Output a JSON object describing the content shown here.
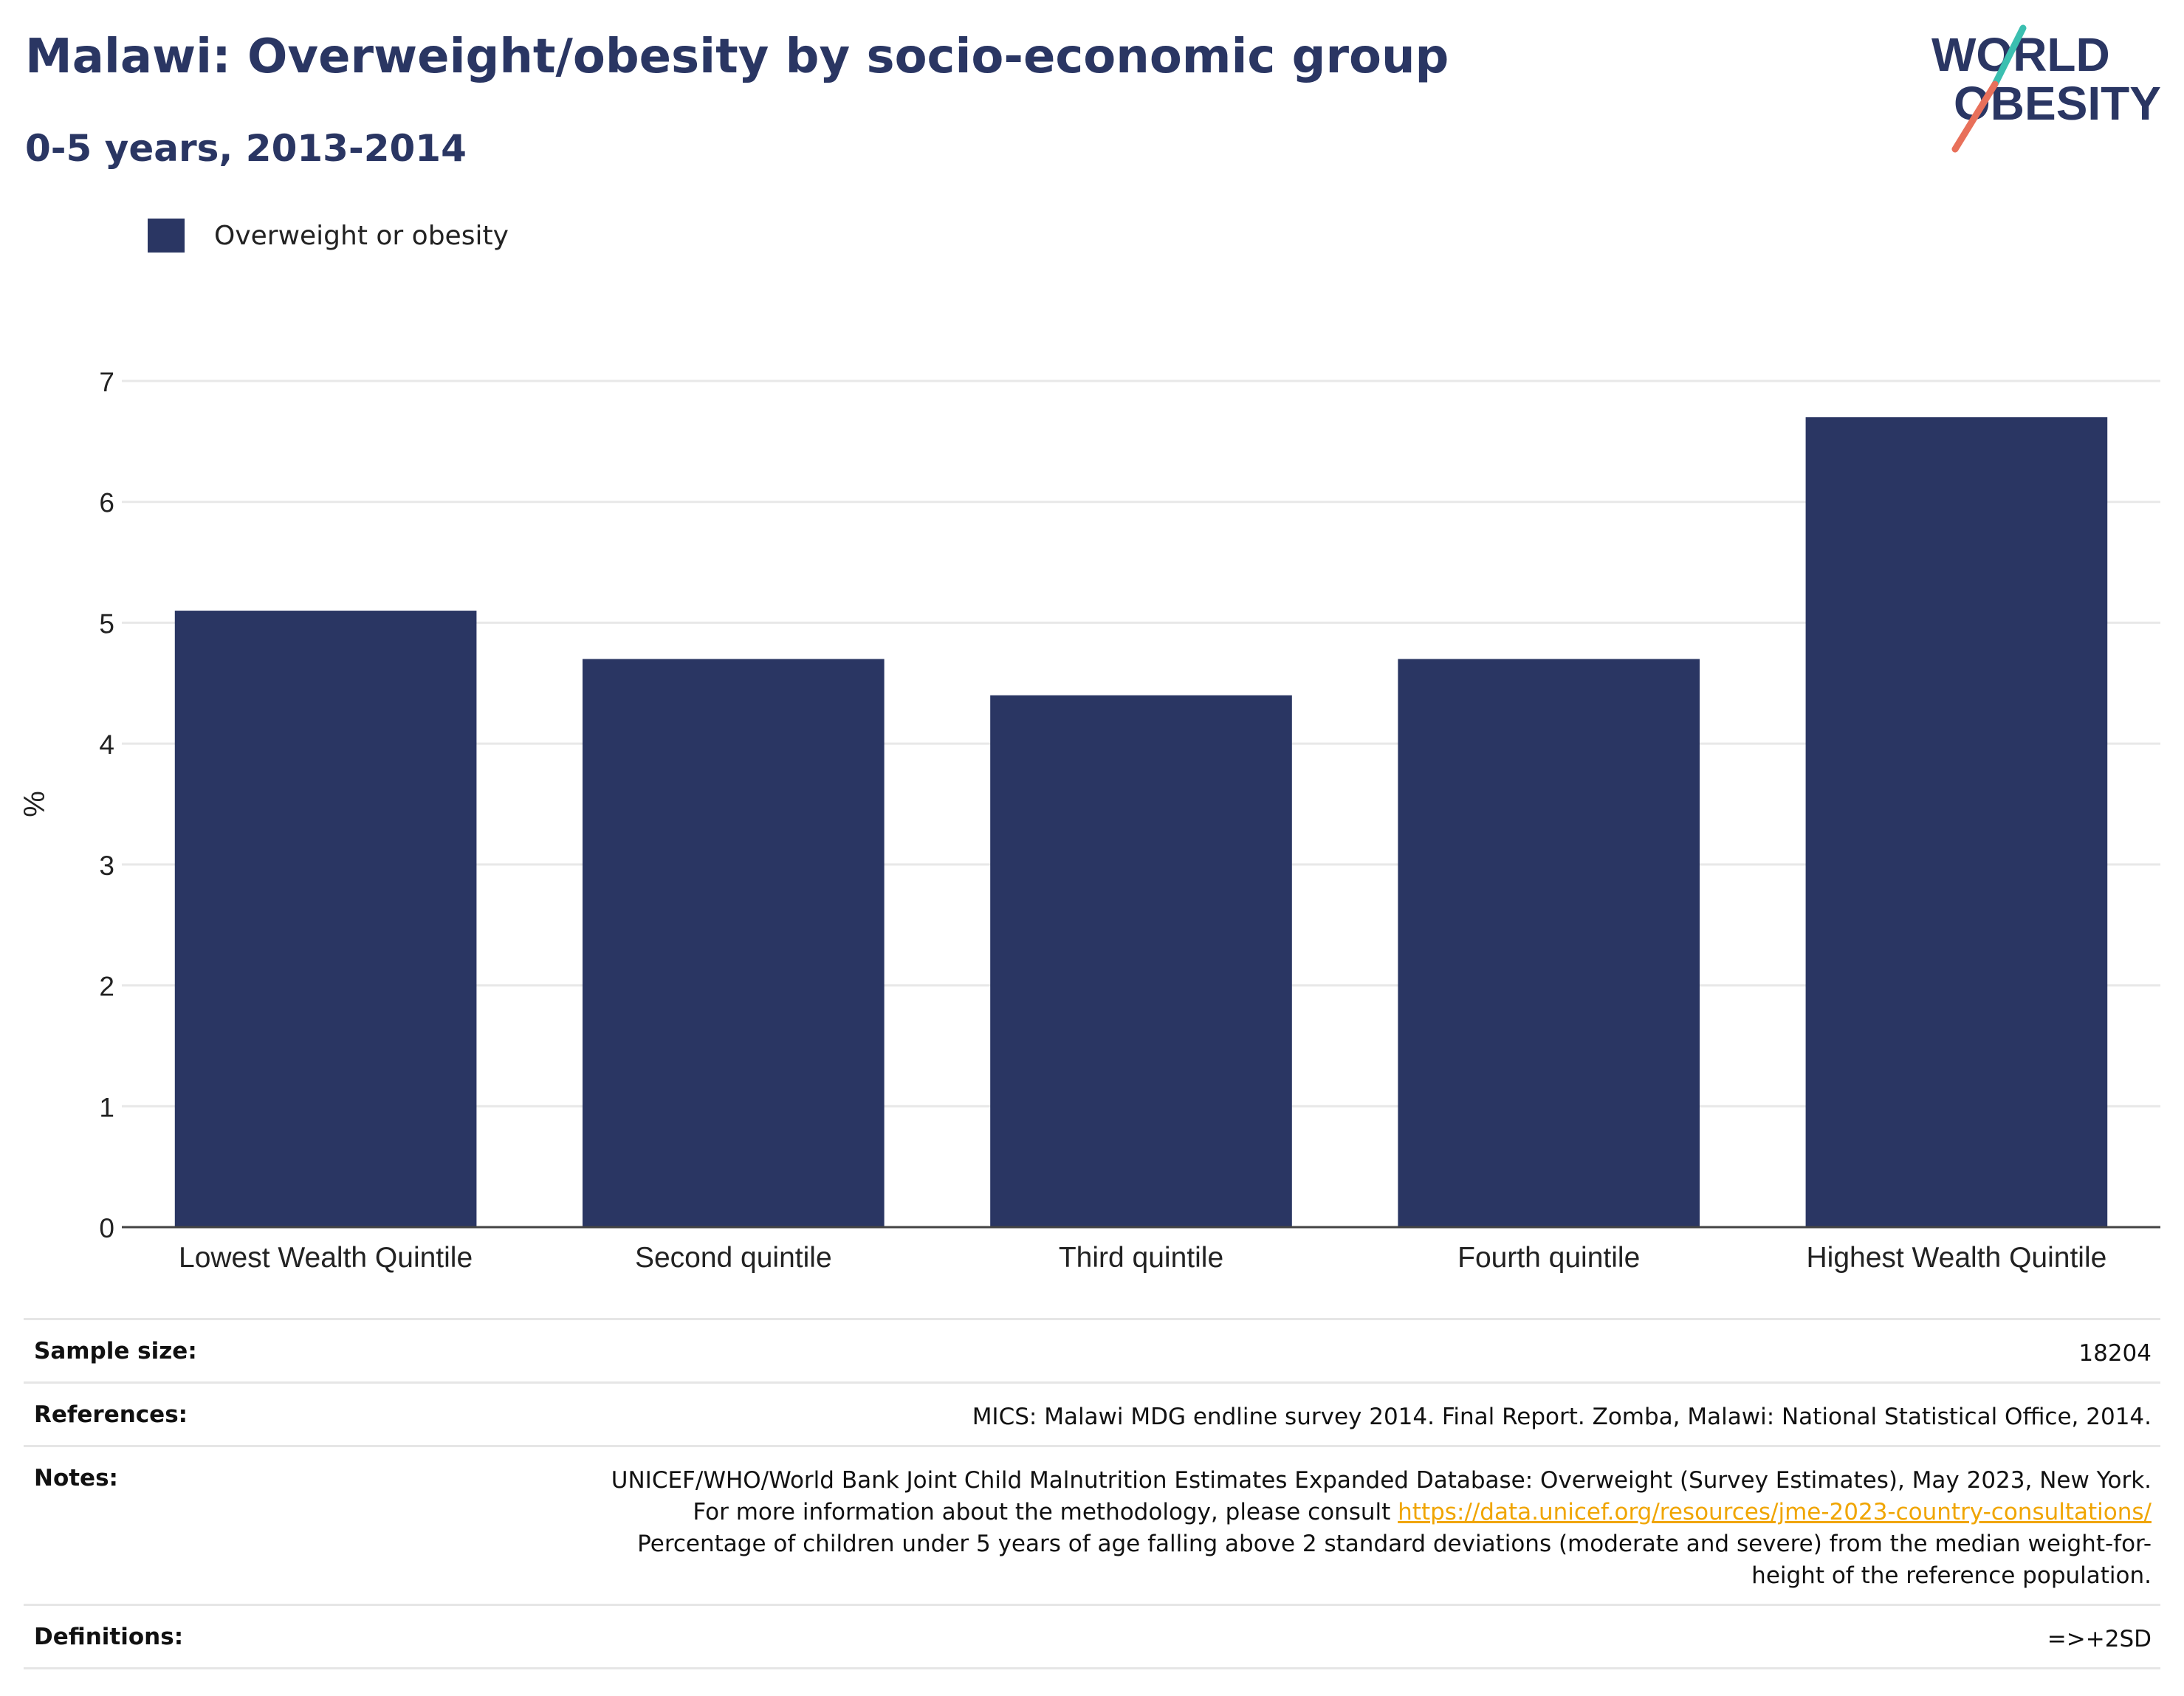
{
  "header": {
    "title": "Malawi: Overweight/obesity by socio-economic group",
    "subtitle": "0-5 years, 2013-2014"
  },
  "logo": {
    "line1": "WORLD",
    "line2": "OBESITY",
    "text_color": "#2a3663",
    "accent_teal": "#3bbfb0",
    "accent_coral": "#e8705a"
  },
  "legend": {
    "items": [
      {
        "label": "Overweight or obesity",
        "color": "#2a3663"
      }
    ]
  },
  "chart_data": {
    "type": "bar",
    "categories": [
      "Lowest Wealth Quintile",
      "Second quintile",
      "Third quintile",
      "Fourth quintile",
      "Highest Wealth Quintile"
    ],
    "series": [
      {
        "name": "Overweight or obesity",
        "values": [
          5.1,
          4.7,
          4.4,
          4.7,
          6.7
        ],
        "color": "#2a3663"
      }
    ],
    "ylabel": "%",
    "ylim": [
      0,
      7
    ],
    "yticks": [
      "0",
      "1",
      "2",
      "3",
      "4",
      "5",
      "6",
      "7"
    ],
    "grid": true,
    "legend_position": "top-left"
  },
  "info": {
    "sample_size": {
      "label": "Sample size:",
      "value": "18204"
    },
    "references": {
      "label": "References:",
      "value": "MICS: Malawi MDG endline survey 2014. Final Report. Zomba, Malawi: National Statistical Office, 2014."
    },
    "notes": {
      "label": "Notes:",
      "text_before": "UNICEF/WHO/World Bank Joint Child Malnutrition Estimates Expanded Database: Overweight (Survey Estimates), May 2023, New York. For more information about the methodology, please consult ",
      "link": "https://data.unicef.org/resources/jme-2023-country-consultations/",
      "text_after": " Percentage of children under 5 years of age falling above 2 standard deviations (moderate and severe) from the median weight-for-height of the reference population."
    },
    "definitions": {
      "label": "Definitions:",
      "value": "=>+2SD"
    }
  }
}
